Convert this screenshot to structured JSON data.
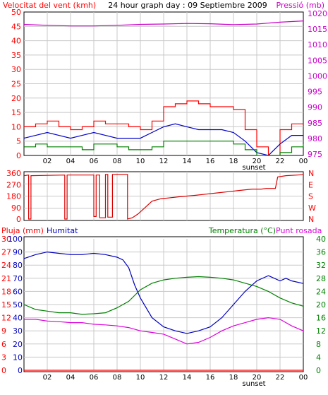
{
  "colors": {
    "background": "#ffffff",
    "plot_bg": "#ffffff",
    "frame": "#000000",
    "grid": "#c8c8c8",
    "wind": "#ff0000",
    "gust": "#ff0000",
    "avg_wind": "#0000c8",
    "low_wind": "#008000",
    "pressure": "#cc00cc",
    "direction": "#dd0000",
    "rain": "#ff0000",
    "humidity": "#0000c0",
    "temperature": "#008000",
    "dewpoint": "#dd00dd",
    "label_black": "#000000"
  },
  "chart_data": [
    {
      "type": "line",
      "title": "24 hour graph day : 09 Septiembre 2009",
      "y_left_label": "Velocitat del vent (kmh)",
      "y_right_label": "Pressió (mb)",
      "x_ticks": [
        "02",
        "04",
        "06",
        "08",
        "10",
        "12",
        "14",
        "16",
        "18",
        "20",
        "22",
        "00"
      ],
      "x_marker": "sunset",
      "ylim_left": [
        0,
        50
      ],
      "y_left_ticks": [
        "0",
        "5",
        "10",
        "15",
        "20",
        "25",
        "30",
        "35",
        "40",
        "45",
        "50"
      ],
      "ylim_right": [
        975,
        1020
      ],
      "y_right_ticks": [
        "975",
        "980",
        "985",
        "990",
        "995",
        "1000",
        "1005",
        "1010",
        "1015",
        "1020"
      ],
      "series": [
        {
          "key": "gust",
          "x": [
            0,
            1,
            2,
            3,
            4,
            5,
            6,
            7,
            8,
            9,
            10,
            11,
            12,
            13,
            14,
            15,
            16,
            17,
            18,
            19,
            20,
            21,
            22,
            23,
            24
          ],
          "values": [
            10,
            11,
            12,
            10,
            9,
            10,
            12,
            11,
            11,
            10,
            9,
            12,
            17,
            18,
            19,
            18,
            17,
            17,
            16,
            9,
            3,
            0,
            9,
            11,
            11
          ]
        },
        {
          "key": "avg_wind",
          "x": [
            0,
            1,
            2,
            3,
            4,
            5,
            6,
            7,
            8,
            9,
            10,
            11,
            12,
            13,
            14,
            15,
            16,
            17,
            18,
            19,
            20,
            21,
            22,
            23,
            24
          ],
          "values": [
            6,
            7,
            8,
            7,
            6,
            7,
            8,
            7,
            6,
            6,
            6,
            8,
            10,
            11,
            10,
            9,
            9,
            9,
            8,
            5,
            1,
            0,
            4,
            7,
            7
          ]
        },
        {
          "key": "low_wind",
          "x": [
            0,
            1,
            2,
            3,
            4,
            5,
            6,
            7,
            8,
            9,
            10,
            11,
            12,
            13,
            14,
            15,
            16,
            17,
            18,
            19,
            20,
            21,
            22,
            23,
            24
          ],
          "values": [
            3,
            4,
            3,
            3,
            3,
            2,
            4,
            4,
            3,
            2,
            2,
            3,
            5,
            5,
            5,
            5,
            5,
            5,
            4,
            2,
            0,
            0,
            1,
            3,
            4
          ]
        },
        {
          "key": "pressure",
          "axis": "right",
          "x": [
            0,
            2,
            4,
            6,
            8,
            10,
            12,
            14,
            16,
            18,
            20,
            22,
            24
          ],
          "values": [
            1016.5,
            1016.2,
            1016,
            1016,
            1016.2,
            1016.5,
            1016.6,
            1016.8,
            1016.7,
            1016.4,
            1016.6,
            1017.2,
            1017.6
          ]
        }
      ]
    },
    {
      "type": "line",
      "title": "",
      "y_left_ticks": [
        "0",
        "90",
        "180",
        "270",
        "360"
      ],
      "ylim": [
        0,
        360
      ],
      "y_right_ticks": [
        "N",
        "W",
        "S",
        "E",
        "N"
      ],
      "x_ticks": [],
      "series": [
        {
          "key": "direction",
          "x": [
            0,
            0.4,
            0.4,
            0.6,
            0.6,
            3.5,
            3.5,
            3.7,
            3.7,
            6.0,
            6.0,
            6.2,
            6.2,
            6.5,
            6.5,
            7.0,
            7.0,
            7.2,
            7.2,
            7.6,
            7.6,
            8.9,
            8.9,
            9.3,
            9.8,
            10.4,
            11.0,
            11.8,
            12.4,
            13.4,
            14.6,
            15.6,
            16.6,
            17.6,
            18.6,
            19.6,
            20.4,
            20.8,
            21.6,
            21.8,
            22.5,
            23.5,
            24
          ],
          "values": [
            340,
            345,
            0,
            0,
            340,
            345,
            0,
            0,
            345,
            345,
            20,
            20,
            345,
            345,
            10,
            10,
            350,
            350,
            15,
            15,
            350,
            350,
            0,
            10,
            40,
            90,
            140,
            160,
            165,
            175,
            185,
            195,
            205,
            215,
            225,
            235,
            235,
            240,
            240,
            330,
            340,
            345,
            348
          ]
        }
      ]
    },
    {
      "type": "line",
      "title": "",
      "y_left_label_rain": "Pluja (mm)",
      "y_left_label_hum": "Humitat",
      "y_right_label_temp": "Temperatura (°C)",
      "y_right_label_dew": "Punt rosada",
      "x_ticks": [
        "02",
        "04",
        "06",
        "08",
        "10",
        "12",
        "14",
        "16",
        "18",
        "20",
        "22",
        "00"
      ],
      "x_marker": "sunset",
      "rain_ticks": [
        "0",
        "3",
        "6",
        "9",
        "12",
        "15",
        "18",
        "21",
        "24",
        "27",
        "30"
      ],
      "hum_ticks": [
        "0",
        "10",
        "20",
        "30",
        "40",
        "50",
        "60",
        "70",
        "80",
        "90",
        "100"
      ],
      "temp_ticks": [
        "0",
        "4",
        "8",
        "12",
        "16",
        "20",
        "24",
        "28",
        "32",
        "36",
        "40"
      ],
      "ylim_rain": [
        0,
        30
      ],
      "ylim_humidity": [
        0,
        100
      ],
      "ylim_temp": [
        0,
        40
      ],
      "series": [
        {
          "key": "rain",
          "x": [
            0,
            24
          ],
          "values": [
            0,
            0
          ]
        },
        {
          "key": "humidity",
          "x": [
            0,
            1,
            2,
            3,
            4,
            5,
            6,
            7,
            8,
            8.5,
            9,
            9.5,
            10,
            11,
            12,
            13,
            14,
            15,
            16,
            17,
            18,
            19,
            20,
            21,
            22,
            22.5,
            23,
            24
          ],
          "values": [
            85,
            88,
            90,
            89,
            88,
            88,
            89,
            88,
            86,
            84,
            78,
            65,
            55,
            40,
            33,
            30,
            28,
            30,
            33,
            40,
            50,
            60,
            68,
            72,
            68,
            70,
            68,
            66
          ]
        },
        {
          "key": "temperature",
          "x": [
            0,
            1,
            2,
            3,
            4,
            5,
            6,
            7,
            8,
            9,
            10,
            11,
            12,
            13,
            14,
            15,
            16,
            17,
            18,
            19,
            20,
            21,
            22,
            23,
            24
          ],
          "values": [
            20,
            18.5,
            18,
            17.5,
            17.5,
            17,
            17.2,
            17.5,
            19,
            21,
            24.5,
            26.5,
            27.5,
            28,
            28.3,
            28.5,
            28.3,
            28,
            27.5,
            26.5,
            25.5,
            24,
            22,
            20.5,
            19.5
          ]
        },
        {
          "key": "dewpoint",
          "x": [
            0,
            1,
            2,
            3,
            4,
            5,
            6,
            7,
            8,
            9,
            10,
            11,
            12,
            13,
            14,
            15,
            16,
            17,
            18,
            19,
            20,
            21,
            22,
            23,
            24
          ],
          "values": [
            15.5,
            15.5,
            15,
            14.8,
            14.5,
            14.5,
            14,
            13.8,
            13.5,
            13,
            12,
            11.5,
            11,
            9.5,
            8,
            8.5,
            10,
            12,
            13.5,
            14.5,
            15.5,
            16,
            15.5,
            13.5,
            12
          ]
        }
      ]
    }
  ]
}
